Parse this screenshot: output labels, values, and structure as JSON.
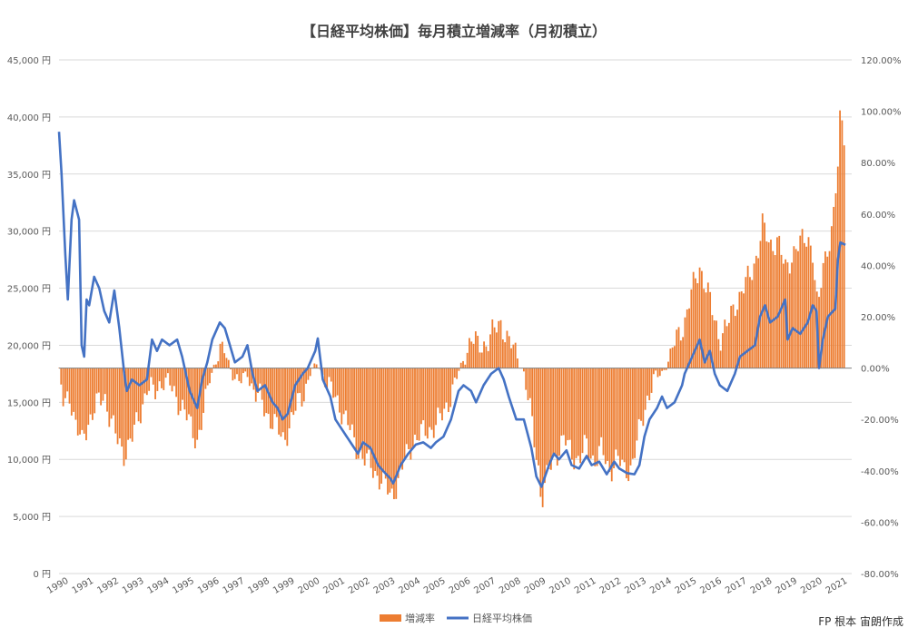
{
  "chart_data": {
    "type": "bar+line",
    "title": "【日経平均株価】毎月積立増減率（月初積立）",
    "credit": "FP 根本 宙朗作成",
    "x_ticks": [
      "1990",
      "1991",
      "1992",
      "1993",
      "1994",
      "1995",
      "1996",
      "1997",
      "1998",
      "1999",
      "2000",
      "2001",
      "2002",
      "2003",
      "2004",
      "2005",
      "2006",
      "2007",
      "2008",
      "2009",
      "2010",
      "2011",
      "2012",
      "2013",
      "2014",
      "2015",
      "2016",
      "2017",
      "2018",
      "2019",
      "2020",
      "2021"
    ],
    "y_left": {
      "ticks": [
        "45,000 円",
        "40,000 円",
        "35,000 円",
        "30,000 円",
        "25,000 円",
        "20,000 円",
        "15,000 円",
        "10,000 円",
        "5,000 円",
        "0 円"
      ],
      "range": [
        0,
        45000
      ]
    },
    "y_right": {
      "ticks": [
        "120.00%",
        "100.00%",
        "80.00%",
        "60.00%",
        "40.00%",
        "20.00%",
        "0.00%",
        "-20.00%",
        "-40.00%",
        "-60.00%",
        "-80.00%"
      ],
      "range": [
        -80,
        120
      ]
    },
    "colors": {
      "bar": "#ED7D31",
      "line": "#4472C4"
    },
    "series": [
      {
        "name": "増減率",
        "kind": "bar",
        "axis": "right",
        "points": [
          [
            1990.0,
            -2
          ],
          [
            1990.2,
            -16
          ],
          [
            1990.4,
            -8
          ],
          [
            1990.6,
            -20
          ],
          [
            1990.9,
            -30
          ],
          [
            1991.0,
            -25
          ],
          [
            1991.2,
            -20
          ],
          [
            1991.5,
            -15
          ],
          [
            1991.8,
            -10
          ],
          [
            1992.0,
            -18
          ],
          [
            1992.3,
            -28
          ],
          [
            1992.6,
            -33
          ],
          [
            1992.9,
            -28
          ],
          [
            1993.2,
            -18
          ],
          [
            1993.5,
            -8
          ],
          [
            1993.8,
            -10
          ],
          [
            1994.0,
            -6
          ],
          [
            1994.3,
            -5
          ],
          [
            1994.6,
            -10
          ],
          [
            1994.9,
            -15
          ],
          [
            1995.2,
            -22
          ],
          [
            1995.5,
            -28
          ],
          [
            1995.8,
            -16
          ],
          [
            1996.0,
            -4
          ],
          [
            1996.2,
            2
          ],
          [
            1996.4,
            7
          ],
          [
            1996.6,
            6
          ],
          [
            1996.9,
            -2
          ],
          [
            1997.2,
            -6
          ],
          [
            1997.5,
            -2
          ],
          [
            1997.8,
            -10
          ],
          [
            1998.0,
            -12
          ],
          [
            1998.3,
            -18
          ],
          [
            1998.6,
            -22
          ],
          [
            1998.9,
            -28
          ],
          [
            1999.2,
            -22
          ],
          [
            1999.5,
            -14
          ],
          [
            1999.8,
            -8
          ],
          [
            2000.0,
            -2
          ],
          [
            2000.3,
            2
          ],
          [
            2000.6,
            -5
          ],
          [
            2000.9,
            -10
          ],
          [
            2001.2,
            -15
          ],
          [
            2001.5,
            -22
          ],
          [
            2001.8,
            -30
          ],
          [
            2002.1,
            -35
          ],
          [
            2002.4,
            -38
          ],
          [
            2002.7,
            -42
          ],
          [
            2003.0,
            -46
          ],
          [
            2003.2,
            -50
          ],
          [
            2003.5,
            -44
          ],
          [
            2003.8,
            -35
          ],
          [
            2004.1,
            -28
          ],
          [
            2004.4,
            -26
          ],
          [
            2004.7,
            -24
          ],
          [
            2005.0,
            -22
          ],
          [
            2005.3,
            -18
          ],
          [
            2005.6,
            -10
          ],
          [
            2005.9,
            -2
          ],
          [
            2006.2,
            6
          ],
          [
            2006.4,
            12
          ],
          [
            2006.7,
            8
          ],
          [
            2007.0,
            10
          ],
          [
            2007.3,
            14
          ],
          [
            2007.6,
            18
          ],
          [
            2007.9,
            10
          ],
          [
            2008.2,
            6
          ],
          [
            2008.5,
            -2
          ],
          [
            2008.8,
            -20
          ],
          [
            2009.1,
            -40
          ],
          [
            2009.2,
            -52
          ],
          [
            2009.5,
            -40
          ],
          [
            2009.8,
            -33
          ],
          [
            2010.1,
            -28
          ],
          [
            2010.4,
            -33
          ],
          [
            2010.7,
            -36
          ],
          [
            2011.0,
            -30
          ],
          [
            2011.3,
            -36
          ],
          [
            2011.6,
            -32
          ],
          [
            2011.9,
            -40
          ],
          [
            2012.2,
            -35
          ],
          [
            2012.5,
            -40
          ],
          [
            2012.8,
            -38
          ],
          [
            2013.1,
            -25
          ],
          [
            2013.4,
            -12
          ],
          [
            2013.7,
            -4
          ],
          [
            2014.0,
            -2
          ],
          [
            2014.3,
            4
          ],
          [
            2014.6,
            12
          ],
          [
            2014.9,
            18
          ],
          [
            2015.2,
            30
          ],
          [
            2015.5,
            40
          ],
          [
            2015.8,
            30
          ],
          [
            2016.0,
            22
          ],
          [
            2016.3,
            12
          ],
          [
            2016.6,
            16
          ],
          [
            2016.9,
            25
          ],
          [
            2017.2,
            30
          ],
          [
            2017.5,
            36
          ],
          [
            2017.8,
            45
          ],
          [
            2018.0,
            55
          ],
          [
            2018.3,
            48
          ],
          [
            2018.6,
            50
          ],
          [
            2018.9,
            38
          ],
          [
            2019.2,
            45
          ],
          [
            2019.5,
            48
          ],
          [
            2019.8,
            52
          ],
          [
            2020.0,
            45
          ],
          [
            2020.2,
            20
          ],
          [
            2020.4,
            40
          ],
          [
            2020.6,
            48
          ],
          [
            2020.8,
            55
          ],
          [
            2021.0,
            78
          ],
          [
            2021.1,
            100
          ],
          [
            2021.3,
            90
          ]
        ]
      },
      {
        "name": "日経平均株価",
        "kind": "line",
        "axis": "left",
        "points": [
          [
            1990.0,
            38700
          ],
          [
            1990.1,
            35000
          ],
          [
            1990.25,
            28000
          ],
          [
            1990.35,
            24000
          ],
          [
            1990.5,
            31000
          ],
          [
            1990.6,
            32700
          ],
          [
            1990.8,
            31000
          ],
          [
            1990.9,
            20000
          ],
          [
            1991.0,
            19000
          ],
          [
            1991.1,
            24000
          ],
          [
            1991.2,
            23500
          ],
          [
            1991.4,
            26000
          ],
          [
            1991.6,
            25000
          ],
          [
            1991.8,
            23000
          ],
          [
            1992.0,
            22000
          ],
          [
            1992.2,
            24800
          ],
          [
            1992.4,
            21500
          ],
          [
            1992.6,
            17500
          ],
          [
            1992.7,
            16000
          ],
          [
            1992.9,
            17000
          ],
          [
            1993.2,
            16500
          ],
          [
            1993.5,
            17000
          ],
          [
            1993.7,
            20500
          ],
          [
            1993.9,
            19500
          ],
          [
            1994.1,
            20500
          ],
          [
            1994.4,
            20000
          ],
          [
            1994.7,
            20500
          ],
          [
            1994.9,
            19000
          ],
          [
            1995.2,
            16000
          ],
          [
            1995.5,
            14500
          ],
          [
            1995.7,
            17000
          ],
          [
            1995.9,
            18500
          ],
          [
            1996.1,
            20500
          ],
          [
            1996.4,
            22000
          ],
          [
            1996.6,
            21500
          ],
          [
            1996.8,
            20000
          ],
          [
            1997.0,
            18500
          ],
          [
            1997.3,
            19000
          ],
          [
            1997.5,
            20000
          ],
          [
            1997.7,
            17500
          ],
          [
            1997.9,
            16000
          ],
          [
            1998.2,
            16500
          ],
          [
            1998.5,
            15000
          ],
          [
            1998.7,
            14500
          ],
          [
            1998.9,
            13500
          ],
          [
            1999.1,
            14000
          ],
          [
            1999.4,
            16500
          ],
          [
            1999.7,
            17500
          ],
          [
            1999.9,
            18000
          ],
          [
            2000.2,
            19500
          ],
          [
            2000.3,
            20600
          ],
          [
            2000.5,
            17000
          ],
          [
            2000.8,
            15500
          ],
          [
            2001.0,
            13500
          ],
          [
            2001.3,
            12500
          ],
          [
            2001.6,
            11500
          ],
          [
            2001.9,
            10500
          ],
          [
            2002.1,
            11500
          ],
          [
            2002.4,
            11000
          ],
          [
            2002.7,
            9500
          ],
          [
            2002.9,
            9000
          ],
          [
            2003.2,
            8300
          ],
          [
            2003.3,
            7900
          ],
          [
            2003.6,
            9500
          ],
          [
            2003.9,
            10500
          ],
          [
            2004.2,
            11300
          ],
          [
            2004.5,
            11500
          ],
          [
            2004.8,
            11000
          ],
          [
            2005.0,
            11500
          ],
          [
            2005.3,
            12000
          ],
          [
            2005.6,
            13500
          ],
          [
            2005.9,
            16000
          ],
          [
            2006.1,
            16500
          ],
          [
            2006.4,
            16000
          ],
          [
            2006.6,
            15000
          ],
          [
            2006.9,
            16500
          ],
          [
            2007.2,
            17500
          ],
          [
            2007.5,
            18000
          ],
          [
            2007.7,
            17000
          ],
          [
            2007.9,
            15500
          ],
          [
            2008.2,
            13500
          ],
          [
            2008.5,
            13500
          ],
          [
            2008.8,
            11000
          ],
          [
            2009.0,
            8500
          ],
          [
            2009.2,
            7600
          ],
          [
            2009.5,
            9500
          ],
          [
            2009.7,
            10500
          ],
          [
            2009.9,
            10000
          ],
          [
            2010.2,
            10800
          ],
          [
            2010.4,
            9500
          ],
          [
            2010.7,
            9200
          ],
          [
            2011.0,
            10300
          ],
          [
            2011.2,
            9500
          ],
          [
            2011.5,
            9800
          ],
          [
            2011.8,
            8700
          ],
          [
            2012.1,
            9800
          ],
          [
            2012.3,
            9200
          ],
          [
            2012.6,
            8800
          ],
          [
            2012.9,
            8700
          ],
          [
            2013.1,
            9500
          ],
          [
            2013.3,
            12000
          ],
          [
            2013.5,
            13500
          ],
          [
            2013.8,
            14500
          ],
          [
            2014.0,
            15500
          ],
          [
            2014.2,
            14500
          ],
          [
            2014.5,
            15000
          ],
          [
            2014.8,
            16500
          ],
          [
            2014.9,
            17500
          ],
          [
            2015.2,
            19000
          ],
          [
            2015.5,
            20500
          ],
          [
            2015.7,
            18500
          ],
          [
            2015.9,
            19500
          ],
          [
            2016.1,
            17500
          ],
          [
            2016.3,
            16500
          ],
          [
            2016.6,
            16000
          ],
          [
            2016.9,
            17500
          ],
          [
            2017.1,
            19000
          ],
          [
            2017.4,
            19500
          ],
          [
            2017.7,
            20000
          ],
          [
            2017.9,
            22500
          ],
          [
            2018.1,
            23500
          ],
          [
            2018.3,
            22000
          ],
          [
            2018.6,
            22500
          ],
          [
            2018.9,
            24000
          ],
          [
            2019.0,
            20500
          ],
          [
            2019.2,
            21500
          ],
          [
            2019.5,
            21000
          ],
          [
            2019.8,
            22000
          ],
          [
            2020.0,
            23500
          ],
          [
            2020.15,
            23000
          ],
          [
            2020.25,
            18000
          ],
          [
            2020.4,
            20500
          ],
          [
            2020.6,
            22500
          ],
          [
            2020.9,
            23200
          ],
          [
            2021.0,
            27500
          ],
          [
            2021.1,
            29000
          ],
          [
            2021.3,
            28800
          ]
        ]
      }
    ],
    "legend": {
      "placement": "bottom",
      "entries": [
        "増減率",
        "日経平均株価"
      ]
    }
  }
}
